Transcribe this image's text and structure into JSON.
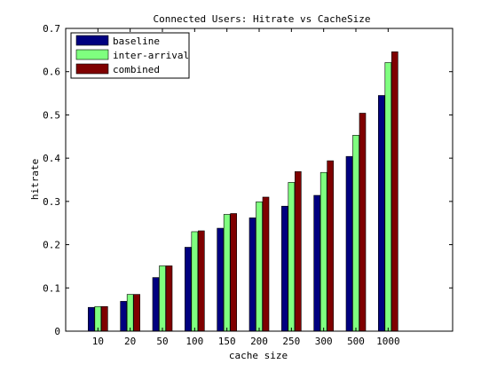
{
  "chart_data": {
    "type": "bar",
    "title": "Connected Users: Hitrate vs CacheSize",
    "xlabel": "cache size",
    "ylabel": "hitrate",
    "categories": [
      "10",
      "20",
      "50",
      "100",
      "150",
      "200",
      "250",
      "300",
      "500",
      "1000"
    ],
    "ylim": [
      0,
      0.7
    ],
    "yticks": [
      "0",
      "0.1",
      "0.2",
      "0.3",
      "0.4",
      "0.5",
      "0.6",
      "0.7"
    ],
    "legend_position": "top-left",
    "grid": false,
    "series": [
      {
        "name": "baseline",
        "color": "#00007f",
        "values": [
          0.055,
          0.069,
          0.124,
          0.194,
          0.238,
          0.262,
          0.289,
          0.314,
          0.404,
          0.545
        ]
      },
      {
        "name": "inter-arrival",
        "color": "#7fff7f",
        "values": [
          0.057,
          0.085,
          0.151,
          0.23,
          0.27,
          0.299,
          0.344,
          0.367,
          0.453,
          0.621
        ]
      },
      {
        "name": "combined",
        "color": "#7f0000",
        "values": [
          0.057,
          0.085,
          0.151,
          0.232,
          0.272,
          0.31,
          0.369,
          0.394,
          0.504,
          0.646
        ]
      }
    ]
  }
}
